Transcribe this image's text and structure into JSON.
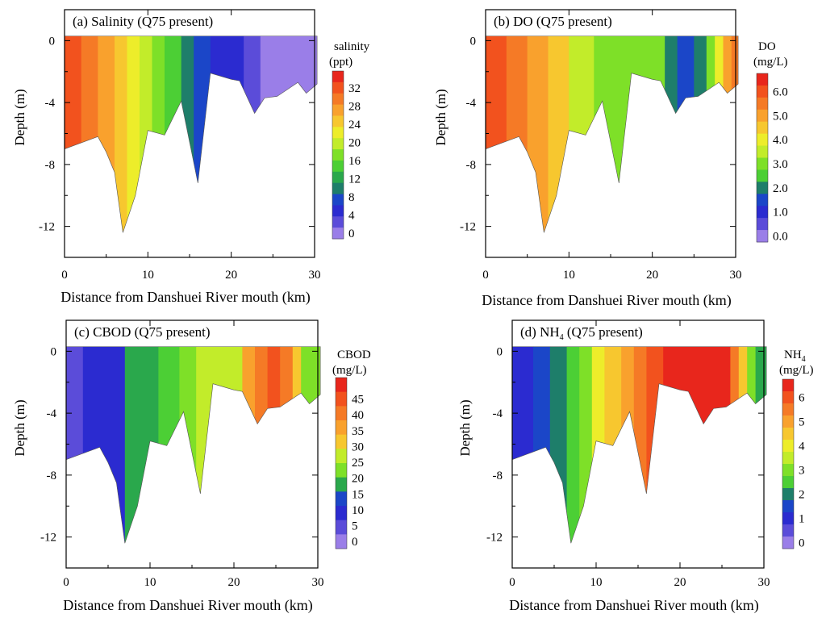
{
  "chart_data": [
    {
      "type": "contour",
      "id": "a",
      "title": "(a) Salinity (Q75 present)",
      "xlabel": "Distance from Danshuei River mouth (km)",
      "ylabel": "Depth (m)",
      "xlim": [
        0,
        30
      ],
      "ylim": [
        -14,
        2
      ],
      "xticks": [
        "0",
        "10",
        "20",
        "30"
      ],
      "yticks": [
        "0",
        "-4",
        "-8",
        "-12"
      ],
      "colorbar": {
        "title_line1": "salinity",
        "title_line2": "(ppt)",
        "levels": [
          "32",
          "28",
          "24",
          "20",
          "16",
          "12",
          "8",
          "4",
          "0"
        ],
        "colors": [
          "#e8261c",
          "#f2521e",
          "#f57a26",
          "#f9a12d",
          "#f7c72f",
          "#eded2a",
          "#c2ec2a",
          "#7ee028",
          "#4ccf35",
          "#2aa84c",
          "#1e7e6a",
          "#1b46c8",
          "#2b2bd0",
          "#5b4cd9",
          "#9a7ee8"
        ]
      },
      "bands": [
        {
          "x0": 0,
          "x1": 2,
          "color": "#f2521e"
        },
        {
          "x0": 2,
          "x1": 4,
          "color": "#f57a26"
        },
        {
          "x0": 4,
          "x1": 6,
          "color": "#f9a12d"
        },
        {
          "x0": 6,
          "x1": 7.5,
          "color": "#f7c72f"
        },
        {
          "x0": 7.5,
          "x1": 9,
          "color": "#eded2a"
        },
        {
          "x0": 9,
          "x1": 10.5,
          "color": "#c2ec2a"
        },
        {
          "x0": 10.5,
          "x1": 12,
          "color": "#7ee028"
        },
        {
          "x0": 12,
          "x1": 14,
          "color": "#4ccf35"
        },
        {
          "x0": 14,
          "x1": 15.5,
          "color": "#1e7e6a"
        },
        {
          "x0": 15.5,
          "x1": 17.5,
          "color": "#1b46c8"
        },
        {
          "x0": 17.5,
          "x1": 21.5,
          "color": "#2b2bd0"
        },
        {
          "x0": 21.5,
          "x1": 23.5,
          "color": "#5b4cd9"
        },
        {
          "x0": 23.5,
          "x1": 30.3,
          "color": "#9a7ee8"
        }
      ]
    },
    {
      "type": "contour",
      "id": "b",
      "title": "(b) DO (Q75 present)",
      "xlabel": "Distance from Danshuei River mouth (km)",
      "ylabel": "Depth (m)",
      "xlim": [
        0,
        30
      ],
      "ylim": [
        -14,
        2
      ],
      "xticks": [
        "0",
        "10",
        "20",
        "30"
      ],
      "yticks": [
        "0",
        "-4",
        "-8",
        "-12"
      ],
      "colorbar": {
        "title_line1": "DO",
        "title_line2": "(mg/L)",
        "levels": [
          "6.0",
          "5.0",
          "4.0",
          "3.0",
          "2.0",
          "1.0",
          "0.0"
        ],
        "colors": [
          "#e8261c",
          "#f2521e",
          "#f57a26",
          "#f9a12d",
          "#f7c72f",
          "#eded2a",
          "#c2ec2a",
          "#7ee028",
          "#4ccf35",
          "#1e7e6a",
          "#1b46c8",
          "#2b2bd0",
          "#5b4cd9",
          "#9a7ee8"
        ]
      },
      "bands": [
        {
          "x0": 0,
          "x1": 2.5,
          "color": "#f2521e"
        },
        {
          "x0": 2.5,
          "x1": 5,
          "color": "#f57a26"
        },
        {
          "x0": 5,
          "x1": 7.5,
          "color": "#f9a12d"
        },
        {
          "x0": 7.5,
          "x1": 10,
          "color": "#f7c72f"
        },
        {
          "x0": 10,
          "x1": 13,
          "color": "#c2ec2a"
        },
        {
          "x0": 13,
          "x1": 21.5,
          "color": "#7ee028"
        },
        {
          "x0": 21.5,
          "x1": 23,
          "color": "#1e7e6a"
        },
        {
          "x0": 23,
          "x1": 25,
          "color": "#1b46c8"
        },
        {
          "x0": 25,
          "x1": 26.5,
          "color": "#1e7e6a"
        },
        {
          "x0": 26.5,
          "x1": 27.5,
          "color": "#7ee028"
        },
        {
          "x0": 27.5,
          "x1": 28.5,
          "color": "#eded2a"
        },
        {
          "x0": 28.5,
          "x1": 29.5,
          "color": "#f9a12d"
        },
        {
          "x0": 29.5,
          "x1": 30.3,
          "color": "#f57a26"
        }
      ]
    },
    {
      "type": "contour",
      "id": "c",
      "title": "(c) CBOD (Q75 present)",
      "xlabel": "Distance from Danshuei River mouth (km)",
      "ylabel": "Depth (m)",
      "xlim": [
        0,
        30
      ],
      "ylim": [
        -14,
        2
      ],
      "xticks": [
        "0",
        "10",
        "20",
        "30"
      ],
      "yticks": [
        "0",
        "-4",
        "-8",
        "-12"
      ],
      "colorbar": {
        "title_line1": "CBOD",
        "title_line2": "(mg/L)",
        "levels": [
          "45",
          "40",
          "35",
          "30",
          "25",
          "20",
          "15",
          "10",
          "5",
          "0"
        ],
        "colors": [
          "#e8261c",
          "#f2521e",
          "#f57a26",
          "#f9a12d",
          "#f7c72f",
          "#c2ec2a",
          "#7ee028",
          "#2aa84c",
          "#1b46c8",
          "#2b2bd0",
          "#5b4cd9",
          "#9a7ee8"
        ]
      },
      "bands": [
        {
          "x0": 0,
          "x1": 2,
          "color": "#5b4cd9"
        },
        {
          "x0": 2,
          "x1": 7,
          "color": "#2b2bd0"
        },
        {
          "x0": 7,
          "x1": 11,
          "color": "#2aa84c"
        },
        {
          "x0": 11,
          "x1": 13.5,
          "color": "#4ccf35"
        },
        {
          "x0": 13.5,
          "x1": 15.5,
          "color": "#7ee028"
        },
        {
          "x0": 15.5,
          "x1": 21,
          "color": "#c2ec2a"
        },
        {
          "x0": 21,
          "x1": 22.5,
          "color": "#f9a12d"
        },
        {
          "x0": 22.5,
          "x1": 24,
          "color": "#f57a26"
        },
        {
          "x0": 24,
          "x1": 25.5,
          "color": "#f2521e"
        },
        {
          "x0": 25.5,
          "x1": 27,
          "color": "#f57a26"
        },
        {
          "x0": 27,
          "x1": 28,
          "color": "#f7c72f"
        },
        {
          "x0": 28,
          "x1": 30.3,
          "color": "#7ee028"
        }
      ]
    },
    {
      "type": "contour",
      "id": "d",
      "title_main": "(d) NH",
      "title_sub": "4",
      "title_tail": " (Q75 present)",
      "xlabel": "Distance from Danshuei River mouth (km)",
      "ylabel": "Depth (m)",
      "xlim": [
        0,
        30
      ],
      "ylim": [
        -14,
        2
      ],
      "xticks": [
        "0",
        "10",
        "20",
        "30"
      ],
      "yticks": [
        "0",
        "-4",
        "-8",
        "-12"
      ],
      "colorbar": {
        "title_main": "NH",
        "title_sub": "4",
        "title_line2": "(mg/L)",
        "levels": [
          "6",
          "5",
          "4",
          "3",
          "2",
          "1",
          "0"
        ],
        "colors": [
          "#e8261c",
          "#f2521e",
          "#f57a26",
          "#f9a12d",
          "#f7c72f",
          "#eded2a",
          "#c2ec2a",
          "#7ee028",
          "#4ccf35",
          "#1e7e6a",
          "#1b46c8",
          "#2b2bd0",
          "#5b4cd9",
          "#9a7ee8"
        ]
      },
      "bands": [
        {
          "x0": 0,
          "x1": 2.5,
          "color": "#2b2bd0"
        },
        {
          "x0": 2.5,
          "x1": 4.5,
          "color": "#1b46c8"
        },
        {
          "x0": 4.5,
          "x1": 6.5,
          "color": "#1e7e6a"
        },
        {
          "x0": 6.5,
          "x1": 8,
          "color": "#4ccf35"
        },
        {
          "x0": 8,
          "x1": 9.5,
          "color": "#7ee028"
        },
        {
          "x0": 9.5,
          "x1": 11,
          "color": "#eded2a"
        },
        {
          "x0": 11,
          "x1": 13,
          "color": "#f7c72f"
        },
        {
          "x0": 13,
          "x1": 14.5,
          "color": "#f9a12d"
        },
        {
          "x0": 14.5,
          "x1": 16,
          "color": "#f57a26"
        },
        {
          "x0": 16,
          "x1": 18,
          "color": "#f2521e"
        },
        {
          "x0": 18,
          "x1": 26,
          "color": "#e8261c"
        },
        {
          "x0": 26,
          "x1": 27,
          "color": "#f57a26"
        },
        {
          "x0": 27,
          "x1": 28,
          "color": "#f7c72f"
        },
        {
          "x0": 28,
          "x1": 29,
          "color": "#7ee028"
        },
        {
          "x0": 29,
          "x1": 30.3,
          "color": "#2aa84c"
        }
      ]
    }
  ],
  "bathymetry": {
    "surface_depth": 0.3,
    "bottom": [
      [
        0,
        -7.0
      ],
      [
        4,
        -6.2
      ],
      [
        5,
        -7.2
      ],
      [
        6,
        -8.5
      ],
      [
        7,
        -12.4
      ],
      [
        8.5,
        -10
      ],
      [
        10,
        -5.8
      ],
      [
        12,
        -6.1
      ],
      [
        14,
        -3.9
      ],
      [
        16,
        -9.2
      ],
      [
        17.5,
        -2.1
      ],
      [
        20,
        -2.5
      ],
      [
        21,
        -2.6
      ],
      [
        22.8,
        -4.7
      ],
      [
        24,
        -3.7
      ],
      [
        25.5,
        -3.6
      ],
      [
        28,
        -2.7
      ],
      [
        29,
        -3.4
      ],
      [
        30.3,
        -2.8
      ]
    ]
  }
}
